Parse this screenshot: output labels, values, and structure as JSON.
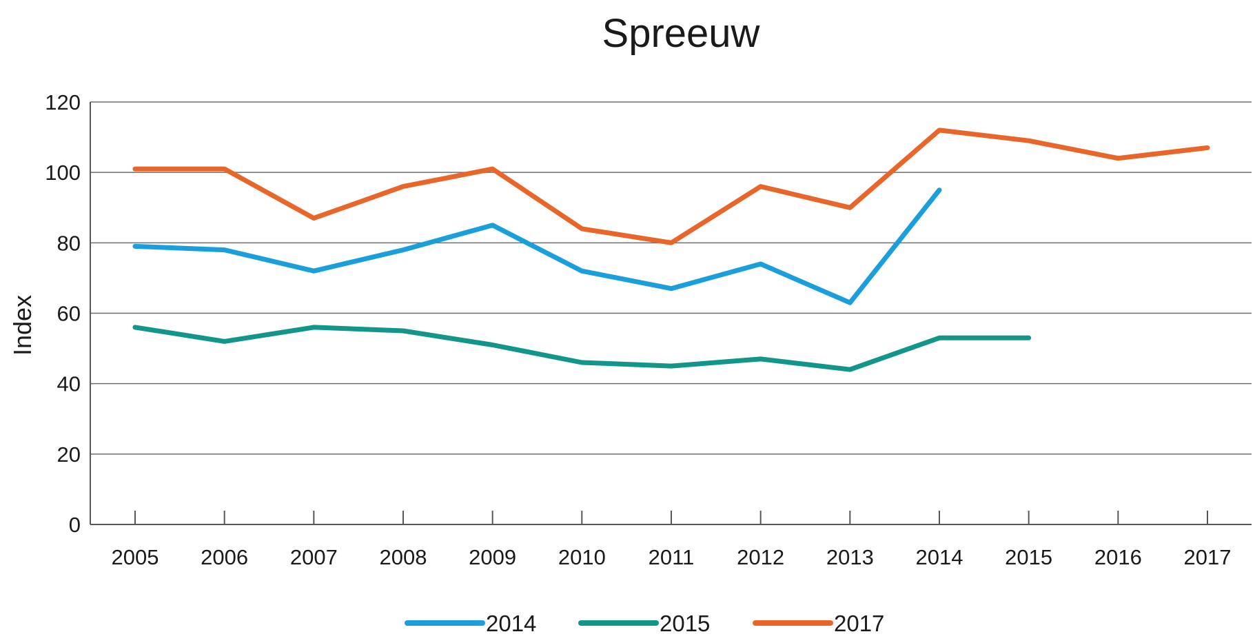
{
  "chart_data": {
    "type": "line",
    "title": "Spreeuw",
    "ylabel": "Index",
    "xlabel": "",
    "categories": [
      "2005",
      "2006",
      "2007",
      "2008",
      "2009",
      "2010",
      "2011",
      "2012",
      "2013",
      "2014",
      "2015",
      "2016",
      "2017"
    ],
    "ylim": [
      0,
      120
    ],
    "yticks": [
      0,
      20,
      40,
      60,
      80,
      100,
      120
    ],
    "grid": true,
    "legend_position": "bottom",
    "series": [
      {
        "name": "2014",
        "color": "#1a9fdc",
        "values": [
          79,
          78,
          72,
          78,
          85,
          72,
          67,
          74,
          63,
          95,
          null,
          null,
          null
        ]
      },
      {
        "name": "2015",
        "color": "#12968a",
        "values": [
          56,
          52,
          56,
          55,
          51,
          46,
          45,
          47,
          44,
          53,
          53,
          null,
          null
        ]
      },
      {
        "name": "2017",
        "color": "#e8662a",
        "values": [
          101,
          101,
          87,
          96,
          101,
          84,
          80,
          96,
          90,
          112,
          109,
          104,
          107
        ]
      }
    ]
  }
}
